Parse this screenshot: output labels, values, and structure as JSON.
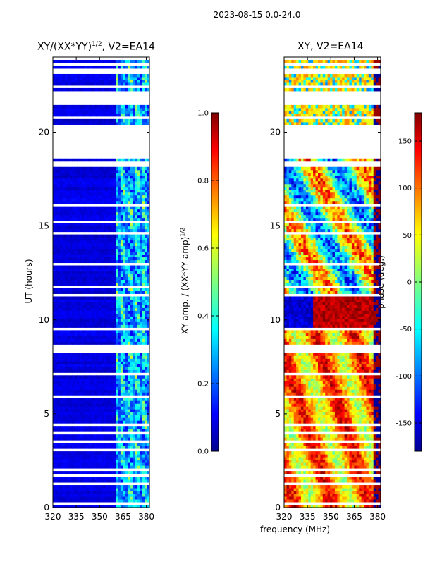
{
  "figure": {
    "suptitle": "2023-08-15 0.0-24.0",
    "xlabel": "frequency (MHz)"
  },
  "chart_data": [
    {
      "type": "heatmap",
      "title": "XY/(XX*YY)^1/2, V2=EA14",
      "title_main": "XY/(XX*YY)",
      "title_sup": "1/2",
      "title_tail": ", V2=EA14",
      "xlabel": "frequency (MHz)",
      "ylabel": "UT (hours)",
      "xlim": [
        320,
        382
      ],
      "ylim": [
        0,
        24
      ],
      "xticks": [
        320,
        335,
        350,
        365,
        380
      ],
      "yticks": [
        0,
        5,
        10,
        15,
        20
      ],
      "colorbar": {
        "label": "XY amp. / (XX*YY amp)^1/2",
        "label_main": "XY amp. / (XX*YY amp)",
        "label_sup": "1/2",
        "range": [
          0.0,
          1.0
        ],
        "ticks": [
          "0.0",
          "0.2",
          "0.4",
          "0.6",
          "0.8",
          "1.0"
        ],
        "colormap": "jet"
      },
      "description_values": "mostly low normalized amplitude (~0.05-0.15) with higher values (~0.3-0.55) in 360-380 MHz columns"
    },
    {
      "type": "heatmap",
      "title": "XY, V2=EA14",
      "xlabel": "frequency (MHz)",
      "ylabel": "",
      "xlim": [
        320,
        382
      ],
      "ylim": [
        0,
        24
      ],
      "xticks": [
        320,
        335,
        350,
        365,
        380
      ],
      "yticks": [
        0,
        5,
        10,
        15,
        20
      ],
      "colorbar": {
        "label": "phase (deg.)",
        "range": [
          -180,
          180
        ],
        "ticks": [
          "-150",
          "-100",
          "-50",
          "0",
          "50",
          "100",
          "150"
        ],
        "colormap": "jet"
      }
    }
  ],
  "colors": {
    "jet_dark": "#00008f",
    "jet_blue": "#0000ff",
    "jet_cyan": "#00ffff",
    "jet_yellow": "#ffff00",
    "jet_red": "#ff0000",
    "jet_darkred": "#800000"
  }
}
